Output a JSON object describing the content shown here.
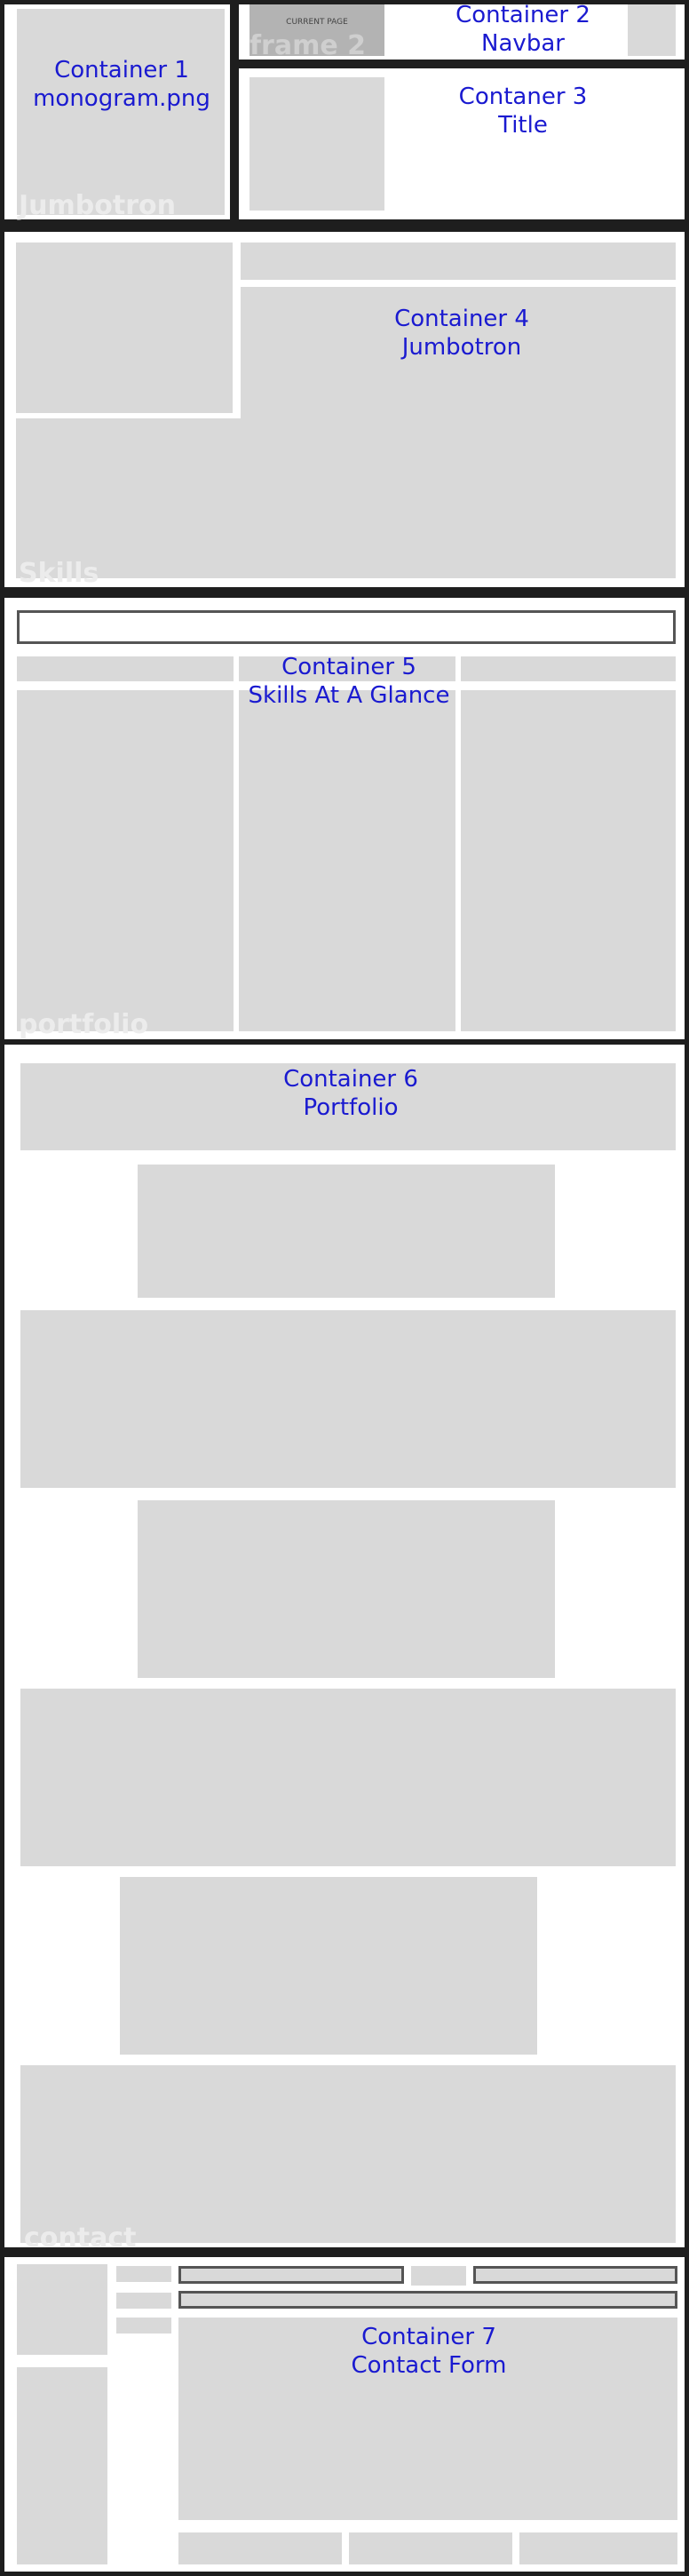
{
  "colors": {
    "frame": "#1e1e1e",
    "placeholder": "#d9d9d9",
    "label": "#1a1ad0",
    "chip": "#b3b3b3"
  },
  "containers": {
    "c1": {
      "line1": "Container 1",
      "line2": "monogram.png",
      "ghost": "Jumbotron"
    },
    "c2": {
      "line1": "Container 2",
      "line2": "Navbar",
      "chip": "CURRENT PAGE",
      "ghost": "frame 2"
    },
    "c3": {
      "line1": "Contaner 3",
      "line2": "Title"
    },
    "c4": {
      "line1": "Container 4",
      "line2": "Jumbotron",
      "ghost": "Skills"
    },
    "c5": {
      "line1": "Container 5",
      "line2": "Skills At A Glance",
      "ghost": "portfolio"
    },
    "c6": {
      "line1": "Container 6",
      "line2": "Portfolio",
      "ghost": "contact"
    },
    "c7": {
      "line1": "Container 7",
      "line2": "Contact Form"
    }
  }
}
